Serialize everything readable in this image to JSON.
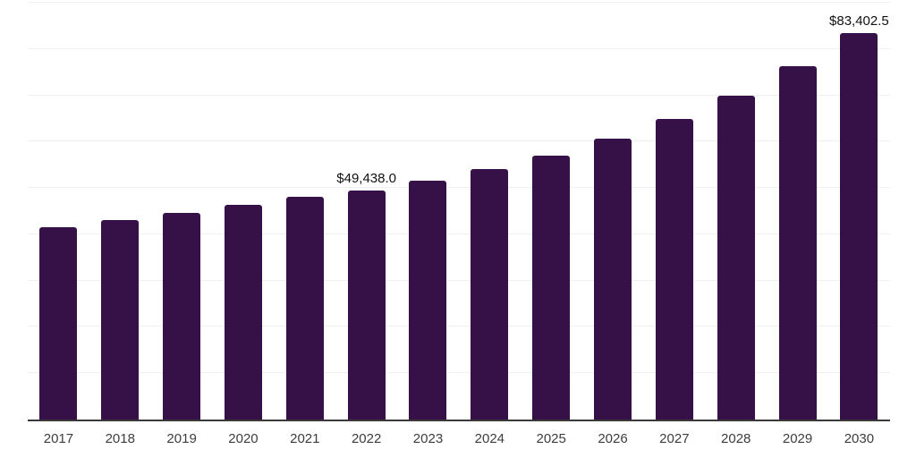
{
  "chart_data": {
    "type": "bar",
    "title": "",
    "xlabel": "",
    "ylabel": "",
    "categories": [
      "2017",
      "2018",
      "2019",
      "2020",
      "2021",
      "2022",
      "2023",
      "2024",
      "2025",
      "2026",
      "2027",
      "2028",
      "2029",
      "2030"
    ],
    "values": [
      41500,
      43100,
      44600,
      46400,
      48000,
      49438.0,
      51500,
      54100,
      57000,
      60600,
      64900,
      70000,
      76300,
      83402.5
    ],
    "data_labels": {
      "5": "$49,438.0",
      "13": "$83,402.5"
    },
    "ylim": [
      0,
      90000
    ],
    "gridline_step": 10000,
    "grid": "horizontal-only",
    "legend": "none",
    "y_axis_tick_labels": "none"
  },
  "colors": {
    "bar": "#351148",
    "gridline": "#f0f0f0",
    "axis_line": "#3a3a3a",
    "x_label_text": "#3d3d3d",
    "value_label_text": "#111111",
    "background": "#ffffff"
  }
}
